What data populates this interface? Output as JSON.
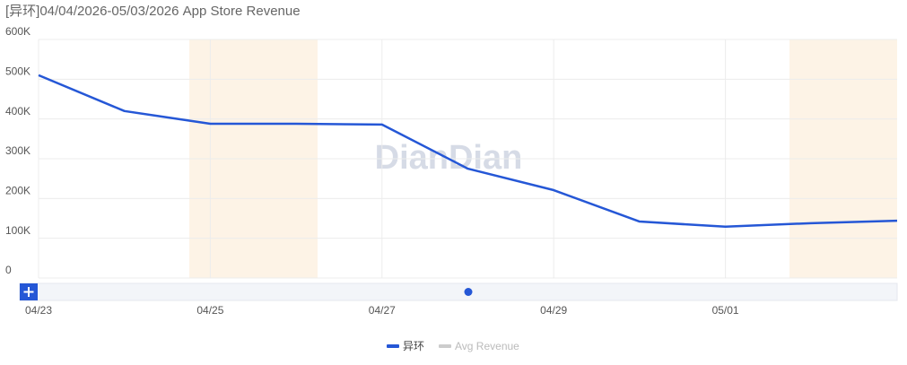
{
  "chart_data": {
    "type": "line",
    "title": "[异环]04/04/2026-05/03/2026 App Store Revenue",
    "watermark": "DianDian",
    "categories": [
      "04/23",
      null,
      "04/25",
      null,
      "04/27",
      null,
      "04/29",
      null,
      "05/01",
      null,
      null
    ],
    "series": [
      {
        "name": "异环",
        "color": "#2557d6",
        "values": [
          510000,
          420000,
          388000,
          388000,
          386000,
          275000,
          221000,
          142000,
          129000,
          138000,
          144000
        ]
      },
      {
        "name": "Avg Revenue",
        "color": "#cccccc",
        "values": [
          null,
          null,
          null,
          null,
          null,
          null,
          null,
          null,
          null,
          null,
          null
        ]
      }
    ],
    "ylim": [
      0,
      600000
    ],
    "yticks": [
      0,
      {
        "value": 100000,
        "label": "100K"
      },
      {
        "value": 200000,
        "label": "200K"
      },
      {
        "value": 300000,
        "label": "300K"
      },
      {
        "value": 400000,
        "label": "400K"
      },
      {
        "value": 500000,
        "label": "500K"
      },
      {
        "value": 600000,
        "label": "600K"
      }
    ],
    "grid": true
  }
}
